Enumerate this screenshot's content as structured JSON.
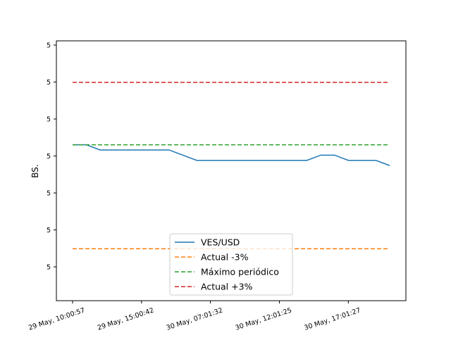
{
  "chart_data": {
    "type": "line",
    "title": "",
    "xlabel": "",
    "ylabel": "BS.",
    "x_ticks": [
      "29 May, 10:00:57",
      "29 May, 15:00:42",
      "30 May, 07:01:32",
      "30 May, 12:01:25",
      "30 May, 17:01:27"
    ],
    "y_ticks": [
      "5",
      "5",
      "5",
      "5",
      "5",
      "5",
      "5"
    ],
    "x_count": 24,
    "ylim": [
      0,
      1
    ],
    "grid": false,
    "legend_position": "lower center",
    "series": [
      {
        "name": "VES/USD",
        "color": "#1f77b4",
        "style": "solid",
        "values": [
          0.6,
          0.6,
          0.58,
          0.58,
          0.58,
          0.58,
          0.58,
          0.58,
          0.56,
          0.54,
          0.54,
          0.54,
          0.54,
          0.54,
          0.54,
          0.54,
          0.54,
          0.54,
          0.56,
          0.56,
          0.54,
          0.54,
          0.54,
          0.52
        ]
      },
      {
        "name": "Actual -3%",
        "color": "#ff7f0e",
        "style": "dashed",
        "values": [
          0.2,
          0.2,
          0.2,
          0.2,
          0.2,
          0.2,
          0.2,
          0.2,
          0.2,
          0.2,
          0.2,
          0.2,
          0.2,
          0.2,
          0.2,
          0.2,
          0.2,
          0.2,
          0.2,
          0.2,
          0.2,
          0.2,
          0.2,
          0.2
        ]
      },
      {
        "name": "Máximo periódico",
        "color": "#2ca02c",
        "style": "dashed",
        "values": [
          0.6,
          0.6,
          0.6,
          0.6,
          0.6,
          0.6,
          0.6,
          0.6,
          0.6,
          0.6,
          0.6,
          0.6,
          0.6,
          0.6,
          0.6,
          0.6,
          0.6,
          0.6,
          0.6,
          0.6,
          0.6,
          0.6,
          0.6,
          0.6
        ]
      },
      {
        "name": "Actual +3%",
        "color": "#d62728",
        "style": "dashed",
        "values": [
          0.84,
          0.84,
          0.84,
          0.84,
          0.84,
          0.84,
          0.84,
          0.84,
          0.84,
          0.84,
          0.84,
          0.84,
          0.84,
          0.84,
          0.84,
          0.84,
          0.84,
          0.84,
          0.84,
          0.84,
          0.84,
          0.84,
          0.84,
          0.84
        ]
      }
    ]
  }
}
